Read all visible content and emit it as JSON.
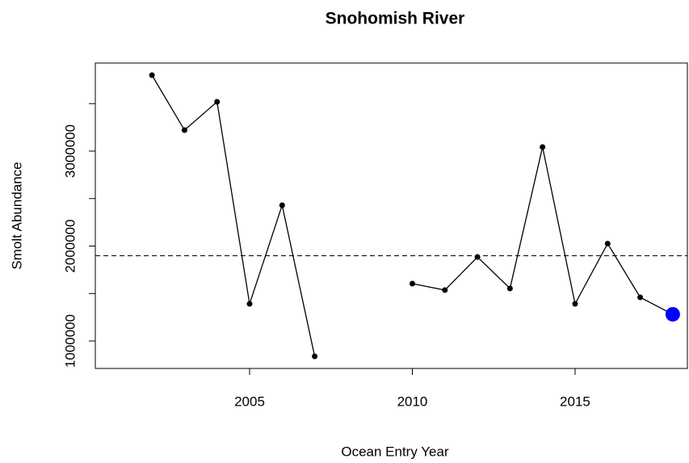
{
  "chart_data": {
    "type": "line",
    "title": "Snohomish River",
    "x_label": "Ocean Entry Year",
    "y_label": "Smolt Abundance",
    "x": [
      2002,
      2003,
      2004,
      2005,
      2006,
      2007,
      2008,
      2009,
      2010,
      2011,
      2012,
      2013,
      2014,
      2015,
      2016,
      2017,
      2018
    ],
    "values": [
      3800000,
      3221000,
      3519000,
      1391000,
      2430000,
      838000,
      null,
      null,
      1604000,
      1536000,
      1885000,
      1553000,
      3043000,
      1391000,
      2026000,
      1460000,
      1281000
    ],
    "color": "#000000",
    "highlight": "last",
    "highlight_color": "#0000ff",
    "reference_line": 1898000,
    "xlim": [
      2000.26,
      2018.45
    ],
    "ylim": [
      710638,
      3927660
    ],
    "xticks": [
      2005,
      2010,
      2015
    ],
    "yticks": [
      1000000,
      2000000,
      3000000
    ],
    "yticks_unlabeled": [
      1500000,
      2500000,
      3500000
    ]
  }
}
